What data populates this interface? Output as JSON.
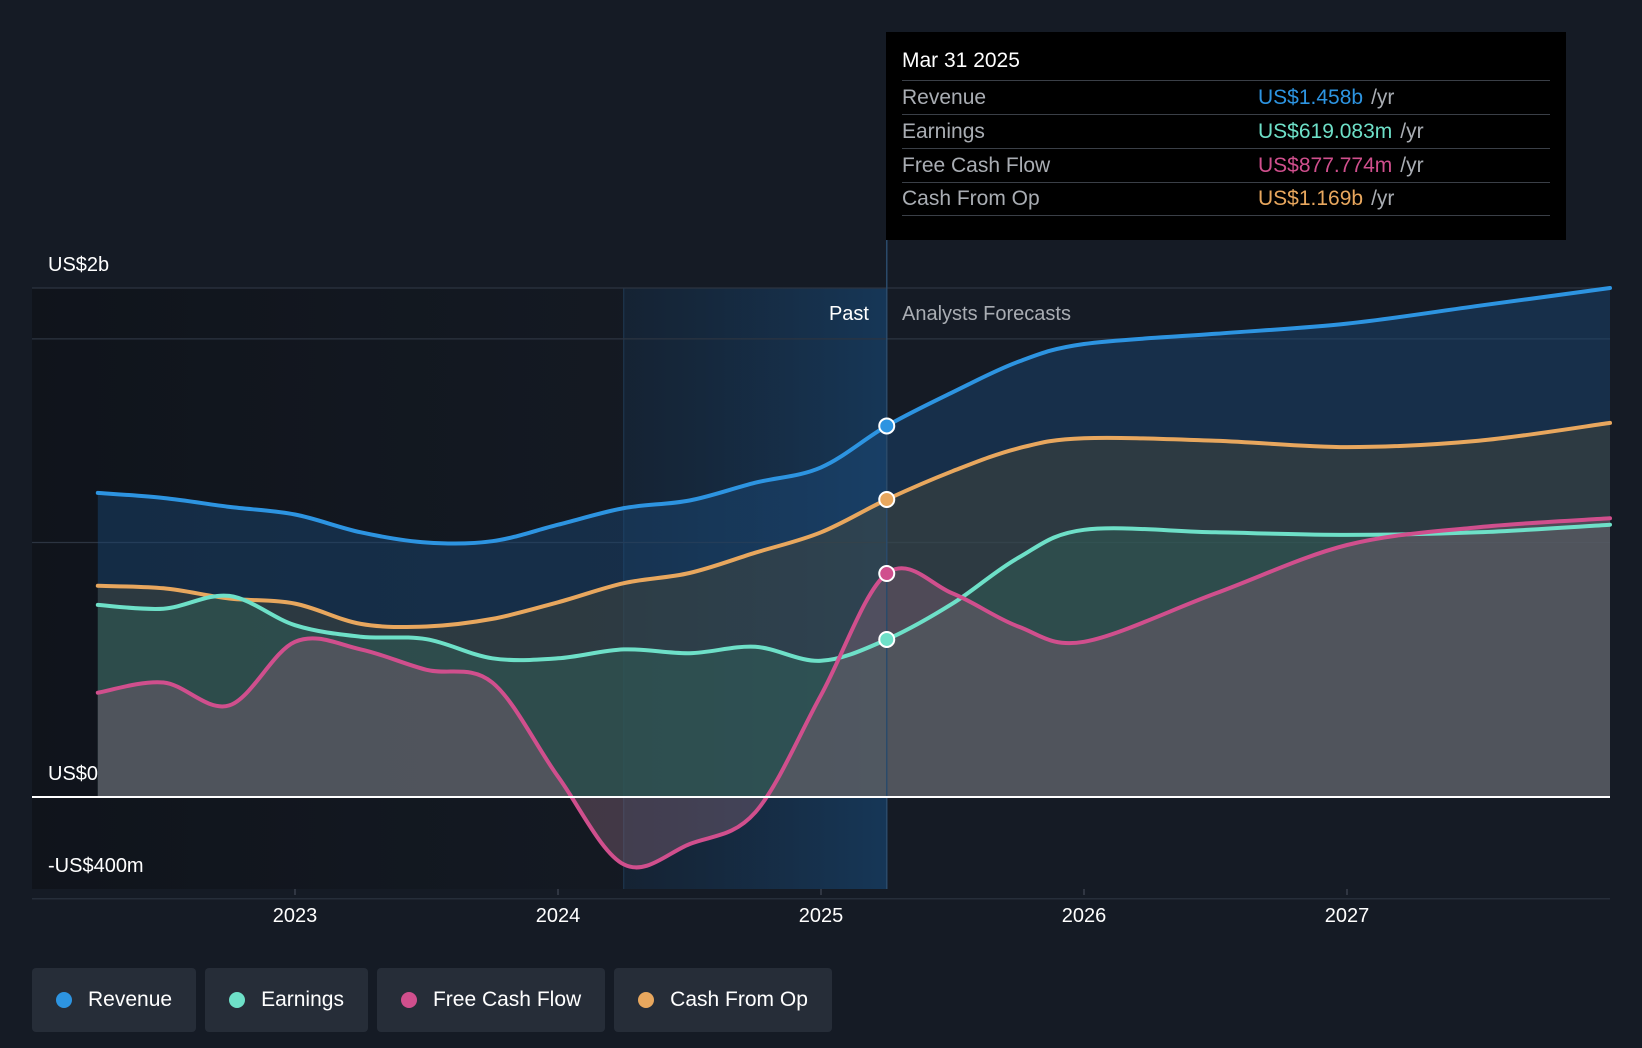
{
  "chart_data": {
    "type": "area",
    "title": "",
    "y_ticks": [
      "US$2b",
      "US$0",
      "-US$400m"
    ],
    "ylim": [
      -400,
      2000
    ],
    "x_ticks": [
      "2023",
      "2024",
      "2025",
      "2026",
      "2027"
    ],
    "past_label": "Past",
    "forecast_label": "Analysts Forecasts",
    "divider_x": 2025.25,
    "past_band_start": 2024.25,
    "series": [
      {
        "name": "Revenue",
        "color": "#2d94e1",
        "points": [
          [
            2022.25,
            1195
          ],
          [
            2022.5,
            1175
          ],
          [
            2022.75,
            1140
          ],
          [
            2023.0,
            1110
          ],
          [
            2023.25,
            1040
          ],
          [
            2023.5,
            1000
          ],
          [
            2023.75,
            1005
          ],
          [
            2024.0,
            1070
          ],
          [
            2024.25,
            1135
          ],
          [
            2024.5,
            1165
          ],
          [
            2024.75,
            1235
          ],
          [
            2025.0,
            1295
          ],
          [
            2025.25,
            1458
          ],
          [
            2025.5,
            1590
          ],
          [
            2025.75,
            1710
          ],
          [
            2026.0,
            1780
          ],
          [
            2026.5,
            1820
          ],
          [
            2027.0,
            1860
          ],
          [
            2027.5,
            1930
          ],
          [
            2028.0,
            2000
          ]
        ]
      },
      {
        "name": "Cash From Op",
        "color": "#e8a75e",
        "points": [
          [
            2022.25,
            830
          ],
          [
            2022.5,
            820
          ],
          [
            2022.75,
            780
          ],
          [
            2023.0,
            760
          ],
          [
            2023.25,
            680
          ],
          [
            2023.5,
            670
          ],
          [
            2023.75,
            700
          ],
          [
            2024.0,
            765
          ],
          [
            2024.25,
            840
          ],
          [
            2024.5,
            880
          ],
          [
            2024.75,
            960
          ],
          [
            2025.0,
            1040
          ],
          [
            2025.25,
            1169
          ],
          [
            2025.5,
            1280
          ],
          [
            2025.75,
            1370
          ],
          [
            2026.0,
            1410
          ],
          [
            2026.5,
            1400
          ],
          [
            2027.0,
            1375
          ],
          [
            2027.5,
            1400
          ],
          [
            2028.0,
            1470
          ]
        ]
      },
      {
        "name": "Earnings",
        "color": "#6ee0c8",
        "points": [
          [
            2022.25,
            755
          ],
          [
            2022.5,
            740
          ],
          [
            2022.75,
            790
          ],
          [
            2023.0,
            675
          ],
          [
            2023.25,
            630
          ],
          [
            2023.5,
            620
          ],
          [
            2023.75,
            545
          ],
          [
            2024.0,
            545
          ],
          [
            2024.25,
            580
          ],
          [
            2024.5,
            565
          ],
          [
            2024.75,
            590
          ],
          [
            2025.0,
            535
          ],
          [
            2025.25,
            619
          ],
          [
            2025.5,
            760
          ],
          [
            2025.75,
            940
          ],
          [
            2026.0,
            1050
          ],
          [
            2026.5,
            1040
          ],
          [
            2027.0,
            1030
          ],
          [
            2027.5,
            1040
          ],
          [
            2028.0,
            1070
          ]
        ]
      },
      {
        "name": "Free Cash Flow",
        "color": "#d04f8d",
        "points": [
          [
            2022.25,
            410
          ],
          [
            2022.5,
            450
          ],
          [
            2022.75,
            360
          ],
          [
            2023.0,
            610
          ],
          [
            2023.25,
            580
          ],
          [
            2023.5,
            500
          ],
          [
            2023.75,
            450
          ],
          [
            2024.0,
            80
          ],
          [
            2024.25,
            -265
          ],
          [
            2024.5,
            -185
          ],
          [
            2024.75,
            -60
          ],
          [
            2025.0,
            400
          ],
          [
            2025.25,
            878
          ],
          [
            2025.5,
            800
          ],
          [
            2025.75,
            670
          ],
          [
            2026.0,
            610
          ],
          [
            2026.5,
            800
          ],
          [
            2027.0,
            990
          ],
          [
            2027.5,
            1060
          ],
          [
            2028.0,
            1095
          ]
        ]
      }
    ],
    "tooltip": {
      "date": "Mar 31 2025",
      "rows": [
        {
          "label": "Revenue",
          "value": "US$1.458b",
          "unit": "/yr",
          "color": "#2d94e1"
        },
        {
          "label": "Earnings",
          "value": "US$619.083m",
          "unit": "/yr",
          "color": "#6ee0c8"
        },
        {
          "label": "Free Cash Flow",
          "value": "US$877.774m",
          "unit": "/yr",
          "color": "#d04f8d"
        },
        {
          "label": "Cash From Op",
          "value": "US$1.169b",
          "unit": "/yr",
          "color": "#e8a75e"
        }
      ]
    },
    "legend": [
      {
        "label": "Revenue",
        "color": "#2d94e1"
      },
      {
        "label": "Earnings",
        "color": "#6ee0c8"
      },
      {
        "label": "Free Cash Flow",
        "color": "#d04f8d"
      },
      {
        "label": "Cash From Op",
        "color": "#e8a75e"
      }
    ]
  }
}
